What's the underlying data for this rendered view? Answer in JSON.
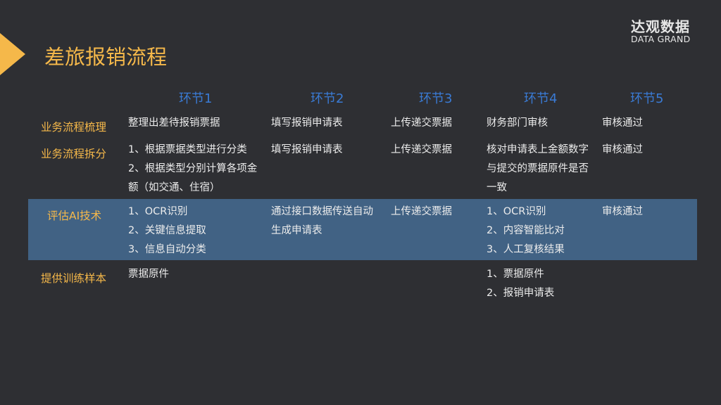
{
  "title": "差旅报销流程",
  "logo": {
    "cn": "达观数据",
    "en": "DATA GRAND"
  },
  "colors": {
    "background": "#2e2f33",
    "accent": "#f5b84a",
    "header": "#3a7bd5",
    "highlight_row": "#416284"
  },
  "table": {
    "headers": [
      "环节1",
      "环节2",
      "环节3",
      "环节4",
      "环节5"
    ],
    "rows": [
      {
        "label": "业务流程梳理",
        "cells": [
          "整理出差待报销票据",
          "填写报销申请表",
          "上传递交票据",
          "财务部门审核",
          "审核通过"
        ]
      },
      {
        "label": "业务流程拆分",
        "cells": [
          "1、根据票据类型进行分类\n2、根据类型分别计算各项金\n额（如交通、住宿）",
          "填写报销申请表",
          "上传递交票据",
          "核对申请表上金额数字\n与提交的票据原件是否\n一致",
          "审核通过"
        ]
      },
      {
        "label": "评估AI技术",
        "highlighted": true,
        "cells": [
          "1、OCR识别\n2、关键信息提取\n3、信息自动分类",
          "通过接口数据传送自动\n生成申请表",
          "上传递交票据",
          "1、OCR识别\n2、内容智能比对\n3、人工复核结果",
          "审核通过"
        ]
      },
      {
        "label": "提供训练样本",
        "cells": [
          "票据原件",
          "",
          "",
          "1、票据原件\n2、报销申请表",
          ""
        ]
      }
    ]
  }
}
